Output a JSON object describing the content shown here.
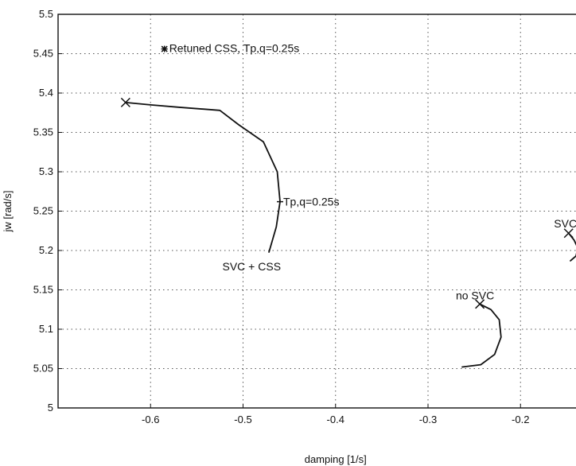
{
  "chart_data": {
    "type": "line",
    "title": "",
    "xlabel": "damping [1/s]",
    "ylabel": "jw [rad/s]",
    "xlim": [
      -0.7,
      -0.14
    ],
    "ylim": [
      5.0,
      5.5
    ],
    "x_ticks": [
      -0.6,
      -0.5,
      -0.4,
      -0.3,
      -0.2
    ],
    "x_tick_labels": [
      "-0.6",
      "-0.5",
      "-0.4",
      "-0.3",
      "-0.2"
    ],
    "y_ticks": [
      5.0,
      5.05,
      5.1,
      5.15,
      5.2,
      5.25,
      5.3,
      5.35,
      5.4,
      5.45,
      5.5
    ],
    "y_tick_labels": [
      "5",
      "5.05",
      "5.1",
      "5.15",
      "5.2",
      "5.25",
      "5.3",
      "5.35",
      "5.4",
      "5.45",
      "5.5"
    ],
    "grid": true,
    "series": [
      {
        "name": "SVC + CSS",
        "x": [
          -0.627,
          -0.6,
          -0.57,
          -0.525,
          -0.505,
          -0.478,
          -0.463,
          -0.46,
          -0.464,
          -0.472
        ],
        "y": [
          5.388,
          5.385,
          5.382,
          5.378,
          5.36,
          5.338,
          5.3,
          5.262,
          5.23,
          5.198
        ]
      },
      {
        "name": "no SVC",
        "x": [
          -0.244,
          -0.232,
          -0.223,
          -0.221,
          -0.228,
          -0.243,
          -0.263
        ],
        "y": [
          5.132,
          5.125,
          5.112,
          5.09,
          5.068,
          5.055,
          5.052
        ]
      },
      {
        "name": "SVC",
        "x": [
          -0.148,
          -0.142,
          -0.138,
          -0.14,
          -0.146
        ],
        "y": [
          5.222,
          5.213,
          5.203,
          5.193,
          5.187
        ]
      }
    ],
    "markers": [
      {
        "label": "",
        "x": -0.627,
        "y": 5.388,
        "symbol": "x"
      },
      {
        "label": "",
        "x": -0.244,
        "y": 5.132,
        "symbol": "x"
      },
      {
        "label": "",
        "x": -0.148,
        "y": 5.222,
        "symbol": "x"
      },
      {
        "label": "",
        "x": -0.585,
        "y": 5.456,
        "symbol": "asterisk"
      }
    ],
    "annotations": [
      {
        "text": "Retuned CSS, Tp,q=0.25s",
        "x": -0.585,
        "y": 5.456
      },
      {
        "text": "Tp,q=0.25s",
        "x": -0.46,
        "y": 5.262
      },
      {
        "text": "SVC + CSS",
        "x": -0.5,
        "y": 5.18
      },
      {
        "text": "no SVC",
        "x": -0.244,
        "y": 5.132
      },
      {
        "text": "SVC",
        "x": -0.148,
        "y": 5.222
      }
    ]
  }
}
